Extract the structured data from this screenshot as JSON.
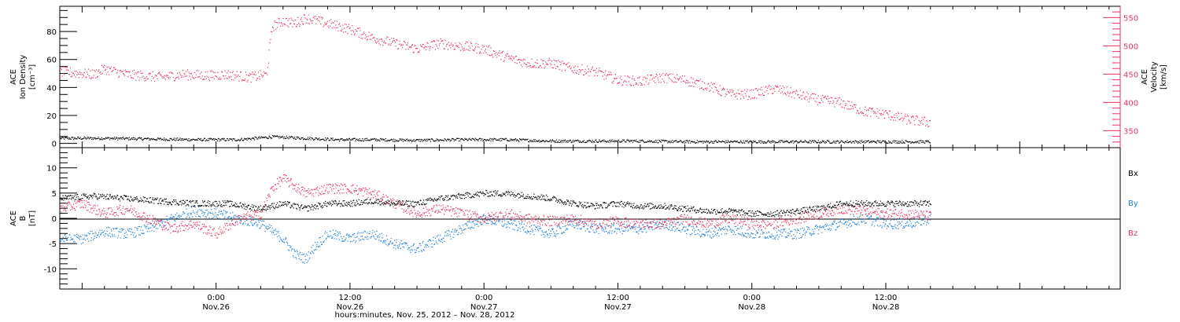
{
  "colors": {
    "density": "#000000",
    "velocity": "#e8335e",
    "bx": "#000000",
    "by": "#1e7fd8",
    "bz": "#e8335e",
    "frame": "#000000"
  },
  "x_axis": {
    "start_hour": -14,
    "end_hour": 81,
    "ticks": [
      {
        "hour": 0,
        "time": "0:00",
        "date": "Nov.26"
      },
      {
        "hour": 12,
        "time": "12:00",
        "date": "Nov.26"
      },
      {
        "hour": 24,
        "time": "0:00",
        "date": "Nov.27"
      },
      {
        "hour": 36,
        "time": "12:00",
        "date": "Nov.27"
      },
      {
        "hour": 48,
        "time": "0:00",
        "date": "Nov.28"
      },
      {
        "hour": 60,
        "time": "12:00",
        "date": "Nov.28"
      }
    ],
    "title": "hours:minutes, Nov. 25, 2012 – Nov. 28, 2012"
  },
  "chart_data": [
    {
      "type": "scatter",
      "panel": "top",
      "ylabel_left": [
        "ACE",
        "Ion Density",
        "[cm⁻³]"
      ],
      "ylabel_right": [
        "ACE",
        "Velocity",
        "[km/s]"
      ],
      "ylim_left": [
        -3,
        98
      ],
      "ylim_right": [
        320,
        570
      ],
      "yticks_left": [
        0,
        20,
        40,
        60,
        80
      ],
      "yticks_right": [
        350,
        400,
        450,
        500,
        550
      ],
      "series": [
        {
          "axis": "left",
          "color_key": "density",
          "x": [
            -14,
            -10,
            -6,
            -2,
            2,
            5,
            8,
            11,
            14,
            18,
            22,
            26,
            30,
            34,
            38,
            42,
            46,
            50,
            54,
            58,
            62,
            64
          ],
          "y": [
            4,
            4,
            3.5,
            3,
            3,
            5,
            4,
            3,
            3,
            2.5,
            3,
            3,
            2,
            2,
            2,
            1.5,
            1.5,
            1.5,
            1.5,
            1.5,
            1.5,
            1.5
          ]
        },
        {
          "axis": "right",
          "x": [
            -14,
            -11,
            -10,
            -8,
            -5,
            -3,
            -1,
            1,
            3,
            4.5,
            5,
            6,
            7,
            8,
            9,
            10,
            12,
            14,
            16,
            18,
            20,
            22,
            24,
            26,
            28,
            30,
            32,
            34,
            36,
            38,
            40,
            42,
            44,
            46,
            48,
            50,
            52,
            54,
            56,
            58,
            60,
            62,
            64
          ],
          "y": [
            455,
            450,
            460,
            450,
            445,
            450,
            448,
            450,
            445,
            450,
            535,
            545,
            540,
            550,
            545,
            540,
            530,
            515,
            505,
            495,
            505,
            500,
            495,
            480,
            470,
            470,
            460,
            455,
            440,
            438,
            445,
            440,
            430,
            415,
            415,
            425,
            415,
            405,
            400,
            385,
            380,
            370,
            365
          ],
          "color_key": "velocity"
        }
      ]
    },
    {
      "type": "scatter",
      "panel": "bottom",
      "ylabel_left": [
        "ACE",
        "B",
        "[nT]"
      ],
      "ylim": [
        -14,
        14
      ],
      "yticks": [
        -10,
        -5,
        0,
        5,
        10
      ],
      "legend": [
        "Bx",
        "By",
        "Bz"
      ],
      "series": [
        {
          "name": "Bx",
          "color_key": "bx",
          "x": [
            -14,
            -11,
            -8,
            -5,
            -2,
            1,
            4,
            6,
            8,
            10,
            12,
            14,
            16,
            18,
            20,
            22,
            24,
            26,
            28,
            30,
            32,
            34,
            36,
            38,
            40,
            42,
            44,
            46,
            48,
            50,
            52,
            54,
            56,
            58,
            60,
            62,
            64
          ],
          "y": [
            4,
            4.5,
            4,
            3.5,
            3,
            3,
            2,
            3,
            2,
            3,
            3,
            3.5,
            3,
            3,
            4,
            4.5,
            5,
            5,
            4.5,
            4,
            3,
            2.5,
            3,
            2.5,
            2.5,
            2,
            1.5,
            1.5,
            1,
            1,
            1.5,
            2,
            3,
            3,
            3,
            3,
            3
          ]
        },
        {
          "name": "By",
          "color_key": "by",
          "x": [
            -14,
            -12,
            -10,
            -8,
            -6,
            -4,
            -2,
            0,
            2,
            4,
            6,
            7,
            8,
            9,
            10,
            12,
            14,
            16,
            18,
            20,
            22,
            24,
            26,
            28,
            30,
            32,
            34,
            36,
            38,
            40,
            42,
            44,
            46,
            48,
            50,
            52,
            54,
            56,
            58,
            60,
            62,
            64
          ],
          "y": [
            -4,
            -4,
            -2.5,
            -3,
            -2,
            0,
            1.5,
            1,
            0,
            -1,
            -4,
            -7,
            -8,
            -5,
            -3,
            -4,
            -3,
            -5,
            -6,
            -4,
            -2,
            0,
            -1,
            -2,
            -3,
            -1,
            -2,
            -2,
            -2,
            -1,
            -2,
            -3,
            -2,
            -3,
            -3,
            -3,
            -2,
            -1,
            0,
            -1,
            -1,
            0
          ]
        },
        {
          "name": "Bz",
          "color_key": "bz",
          "x": [
            -14,
            -12,
            -10,
            -8,
            -6,
            -4,
            -2,
            0,
            2,
            4,
            5,
            6,
            8,
            10,
            12,
            14,
            16,
            18,
            20,
            22,
            24,
            26,
            28,
            30,
            32,
            34,
            36,
            38,
            40,
            42,
            44,
            46,
            48,
            50,
            52,
            54,
            56,
            58,
            60,
            62,
            64
          ],
          "y": [
            2,
            3,
            1,
            2,
            0,
            -2,
            -1,
            -3,
            0,
            1,
            6,
            8,
            5,
            6,
            6,
            5,
            3,
            1,
            2,
            1,
            0,
            1,
            0,
            -0.5,
            0,
            -1,
            -0.5,
            -1,
            -1,
            0,
            -1,
            0,
            -1,
            -1,
            0,
            1,
            2,
            1.5,
            1,
            1,
            0.5
          ]
        }
      ]
    }
  ]
}
